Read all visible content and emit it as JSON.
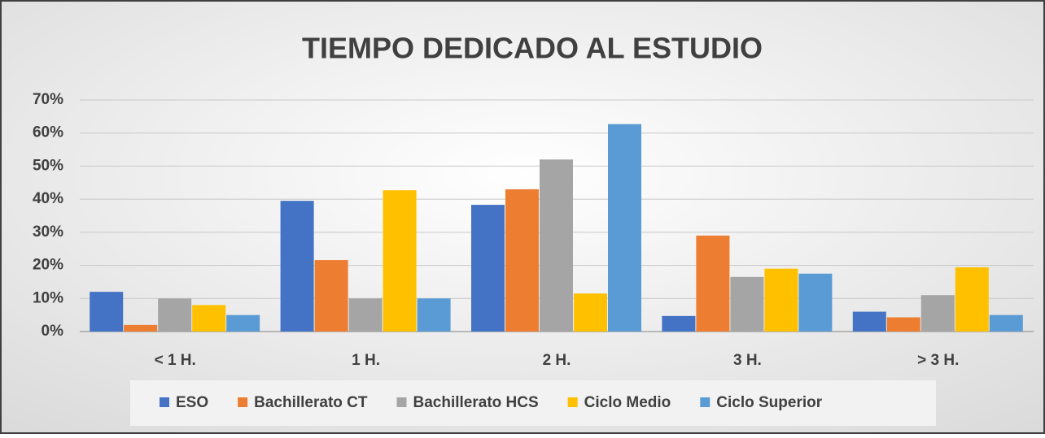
{
  "chart_data": {
    "type": "bar",
    "title": "TIEMPO DEDICADO AL ESTUDIO",
    "categories": [
      "< 1 H.",
      "1 H.",
      "2 H.",
      "3 H.",
      "> 3 H."
    ],
    "series": [
      {
        "name": "ESO",
        "color": "#4472c4",
        "values": [
          12,
          39.5,
          38.3,
          4.7,
          6
        ]
      },
      {
        "name": "Bachillerato CT",
        "color": "#ed7d31",
        "values": [
          2,
          21.6,
          43,
          29,
          4.3
        ]
      },
      {
        "name": "Bachillerato HCS",
        "color": "#a5a5a5",
        "values": [
          10,
          10,
          52,
          16.5,
          11
        ]
      },
      {
        "name": "Ciclo Medio",
        "color": "#ffc000",
        "values": [
          8,
          42.7,
          11.5,
          19,
          19.4
        ]
      },
      {
        "name": "Ciclo Superior",
        "color": "#5b9bd5",
        "values": [
          5,
          10,
          62.7,
          17.5,
          5
        ]
      }
    ],
    "ylim": [
      0,
      70
    ],
    "yticks": [
      {
        "value": 0,
        "label": "0%"
      },
      {
        "value": 10,
        "label": "10%"
      },
      {
        "value": 20,
        "label": "20%"
      },
      {
        "value": 30,
        "label": "30%"
      },
      {
        "value": 40,
        "label": "40%"
      },
      {
        "value": 50,
        "label": "50%"
      },
      {
        "value": 60,
        "label": "60%"
      },
      {
        "value": 70,
        "label": "70%"
      }
    ],
    "grid": true,
    "legend": "bottom"
  }
}
